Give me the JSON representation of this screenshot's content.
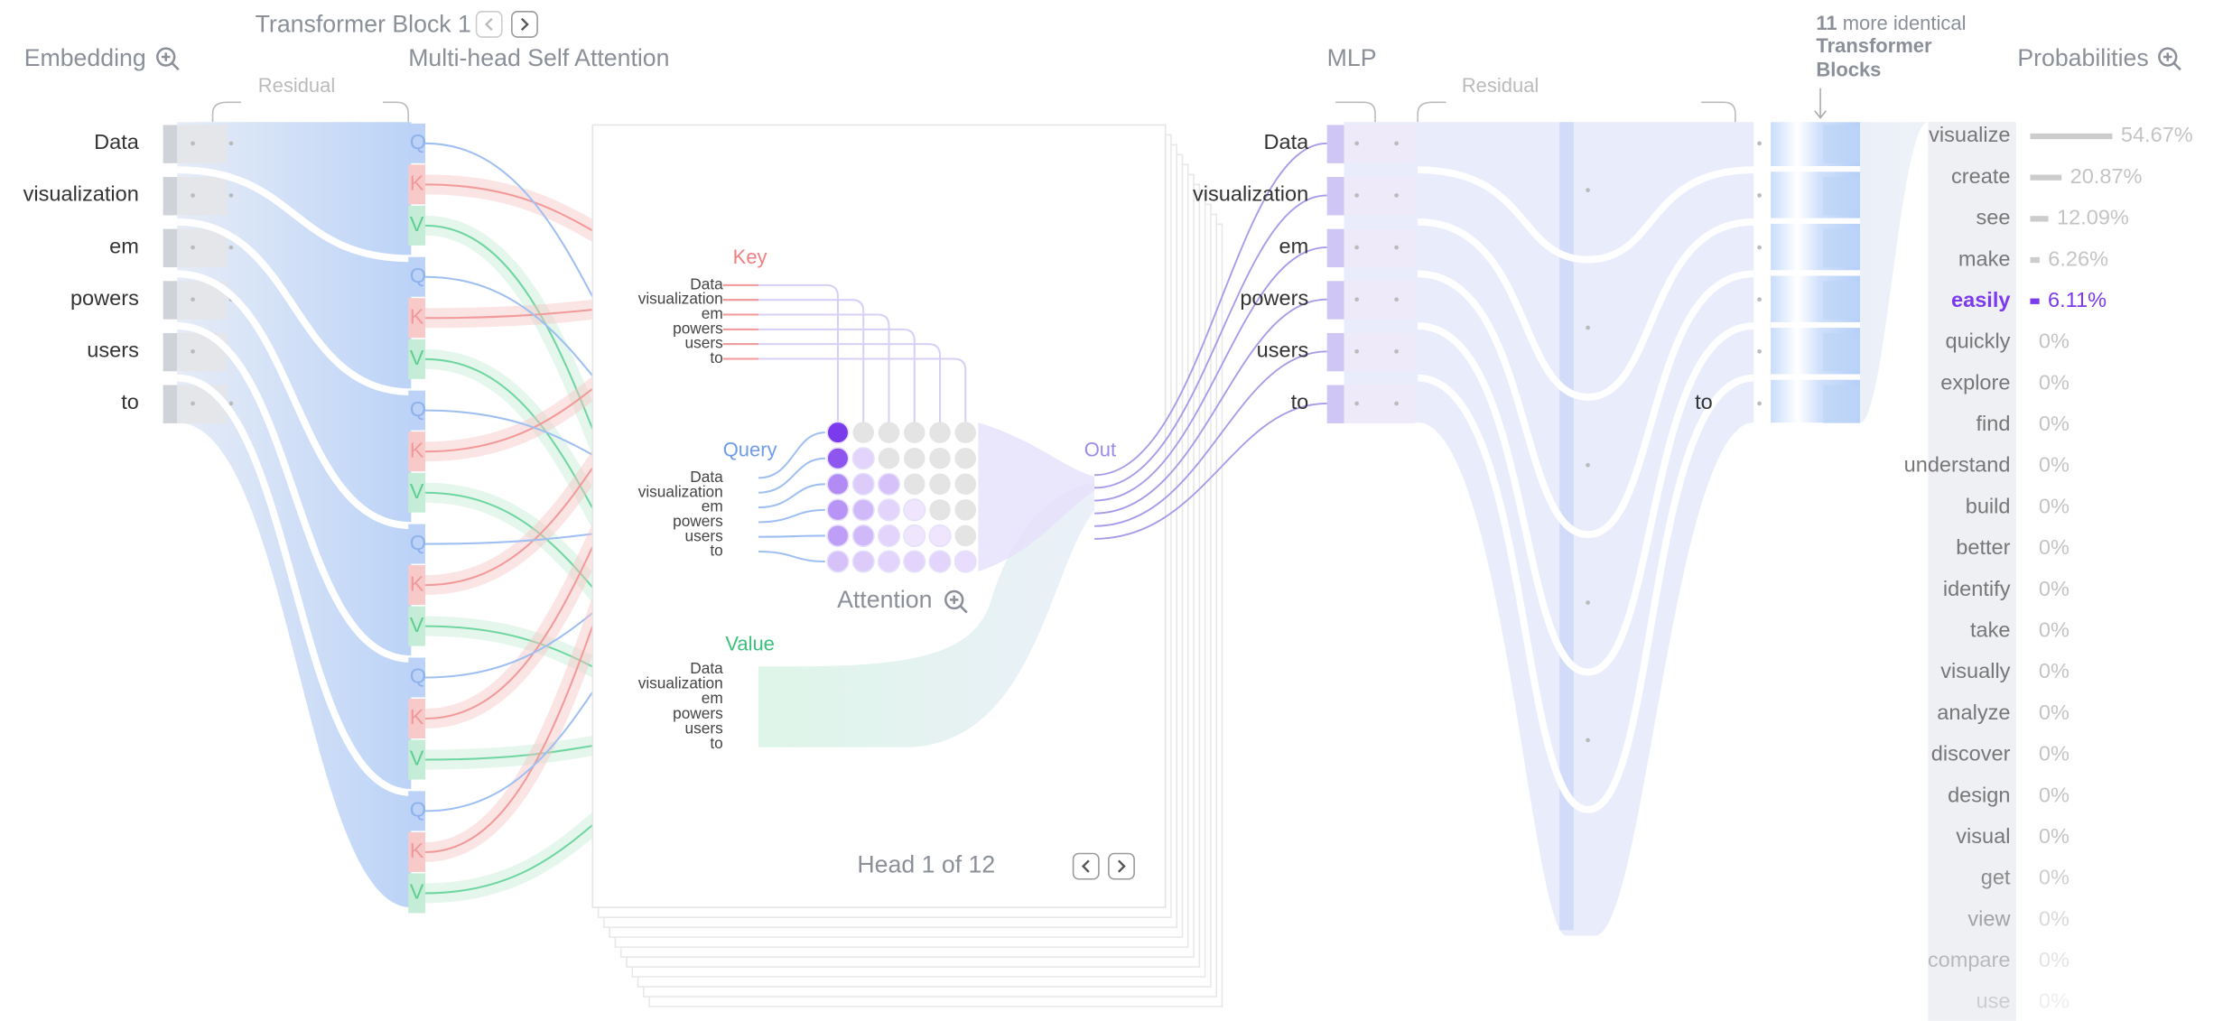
{
  "header": {
    "block_title": "Transformer Block 1",
    "embedding": "Embedding",
    "attention_title": "Multi-head Self Attention",
    "residual_left": "Residual",
    "mlp": "MLP",
    "residual_right": "Residual",
    "more_count": "11",
    "more_text": "more identical",
    "more_line2": "Transformer",
    "more_line3": "Blocks",
    "probabilities": "Probabilities"
  },
  "tokens": [
    "Data",
    "visualization",
    "em",
    "powers",
    "users",
    "to"
  ],
  "qkv": [
    "Q",
    "K",
    "V"
  ],
  "head": {
    "key": "Key",
    "query": "Query",
    "value": "Value",
    "attention": "Attention",
    "out": "Out",
    "label": "Head 1 of 12"
  },
  "attention_weights": [
    [
      1
    ],
    [
      0.85,
      0.15
    ],
    [
      0.55,
      0.2,
      0.25
    ],
    [
      0.5,
      0.3,
      0.15,
      0.05
    ],
    [
      0.45,
      0.3,
      0.15,
      0.05,
      0.05
    ],
    [
      0.25,
      0.2,
      0.15,
      0.15,
      0.15,
      0.1
    ]
  ],
  "output_token": "to",
  "probabilities": [
    {
      "word": "visualize",
      "value": 54.67,
      "label": "54.67%"
    },
    {
      "word": "create",
      "value": 20.87,
      "label": "20.87%"
    },
    {
      "word": "see",
      "value": 12.09,
      "label": "12.09%"
    },
    {
      "word": "make",
      "value": 6.26,
      "label": "6.26%"
    },
    {
      "word": "easily",
      "value": 6.11,
      "label": "6.11%"
    },
    {
      "word": "quickly",
      "value": 0,
      "label": "0%"
    },
    {
      "word": "explore",
      "value": 0,
      "label": "0%"
    },
    {
      "word": "find",
      "value": 0,
      "label": "0%"
    },
    {
      "word": "understand",
      "value": 0,
      "label": "0%"
    },
    {
      "word": "build",
      "value": 0,
      "label": "0%"
    },
    {
      "word": "better",
      "value": 0,
      "label": "0%"
    },
    {
      "word": "identify",
      "value": 0,
      "label": "0%"
    },
    {
      "word": "take",
      "value": 0,
      "label": "0%"
    },
    {
      "word": "visually",
      "value": 0,
      "label": "0%"
    },
    {
      "word": "analyze",
      "value": 0,
      "label": "0%"
    },
    {
      "word": "discover",
      "value": 0,
      "label": "0%"
    },
    {
      "word": "design",
      "value": 0,
      "label": "0%"
    },
    {
      "word": "visual",
      "value": 0,
      "label": "0%"
    },
    {
      "word": "get",
      "value": 0,
      "label": "0%"
    },
    {
      "word": "view",
      "value": 0,
      "label": "0%"
    },
    {
      "word": "compare",
      "value": 0,
      "label": "0%"
    },
    {
      "word": "use",
      "value": 0,
      "label": "0%"
    }
  ]
}
